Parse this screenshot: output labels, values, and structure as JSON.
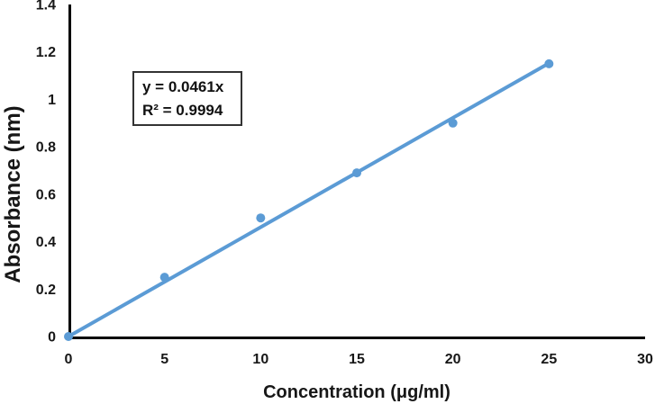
{
  "chart_data": {
    "type": "scatter",
    "title": "",
    "xlabel": "Concentration (μg/ml)",
    "ylabel": "Absorbance (nm)",
    "x": [
      0,
      5,
      10,
      15,
      20,
      25
    ],
    "y": [
      0,
      0.25,
      0.5,
      0.69,
      0.9,
      1.15
    ],
    "xlim": [
      0,
      30
    ],
    "ylim": [
      0,
      1.4
    ],
    "x_tick_values": [
      0,
      5,
      10,
      15,
      20,
      25,
      30
    ],
    "x_tick_labels": [
      "0",
      "5",
      "10",
      "15",
      "20",
      "25",
      "30"
    ],
    "y_tick_values": [
      0,
      0.2,
      0.4,
      0.6,
      0.8,
      1,
      1.2,
      1.4
    ],
    "y_tick_labels": [
      "0",
      "0.2",
      "0.4",
      "0.6",
      "0.8",
      "1",
      "1.2",
      "1.4"
    ],
    "grid": false,
    "legend": false,
    "trendline": {
      "type": "linear",
      "slope": 0.0461,
      "intercept": 0,
      "x_range": [
        0,
        25
      ],
      "r_squared": 0.9994
    },
    "annotation": {
      "equation": "y = 0.0461x",
      "r_squared_label": "R² = 0.9994"
    },
    "colors": {
      "marker": "#5B9BD5",
      "line": "#5B9BD5",
      "axis": "#000000",
      "text": "#171717",
      "annotation_border": "#333333"
    }
  }
}
